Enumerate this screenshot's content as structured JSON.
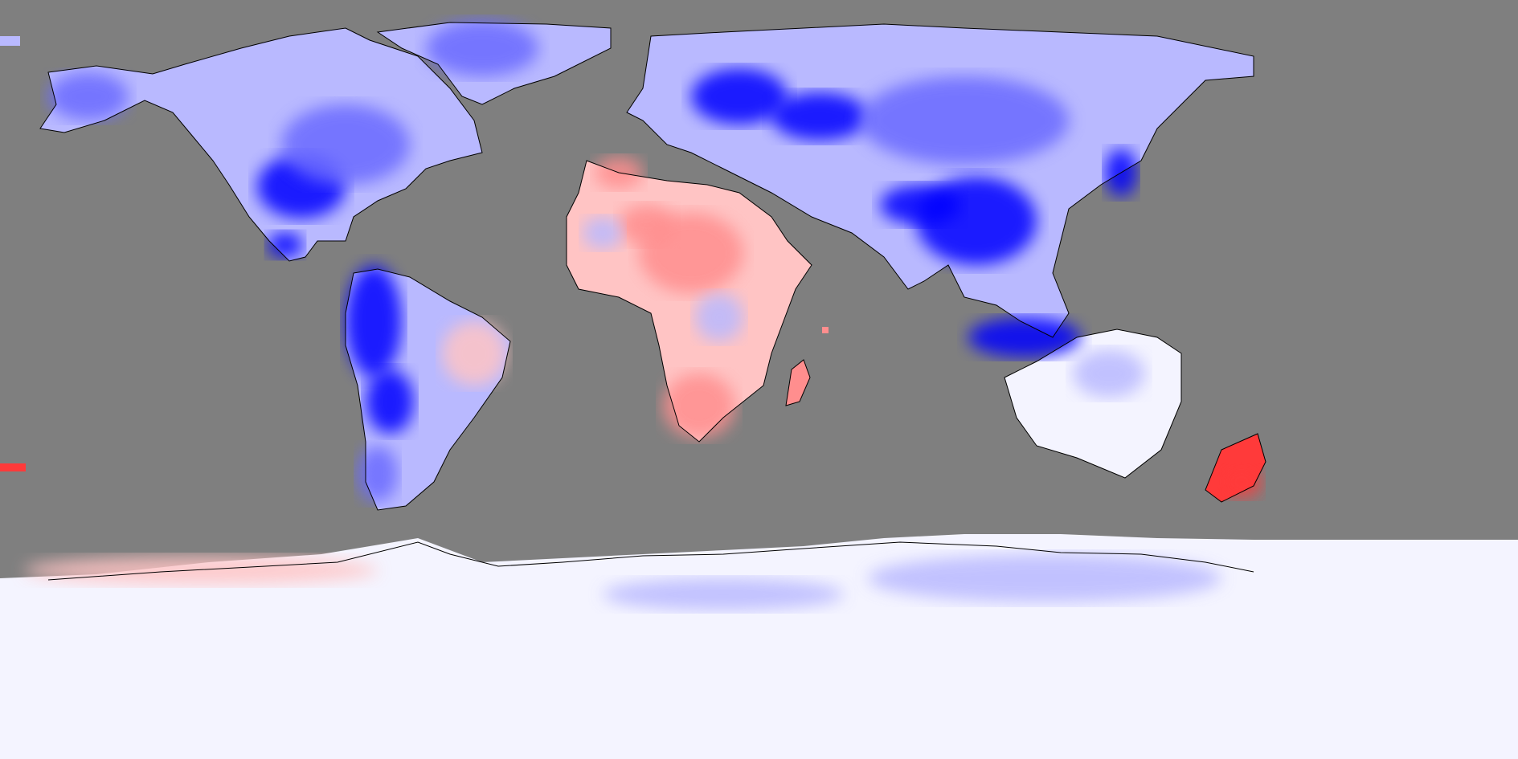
{
  "map": {
    "projection": "equirectangular",
    "ocean_color": "#7f7f7f",
    "coastline_color": "#000000",
    "palette": {
      "strong_cold": "#0000ff",
      "moderate_cold": "#6a6aff",
      "weak_cold": "#b9b9ff",
      "neutral": "#f4f4ff",
      "weak_warm": "#ffc4c4",
      "moderate_warm": "#ff8e8e",
      "strong_warm": "#ff3a3a"
    },
    "regions": [
      {
        "name": "north-america",
        "tone": "weak_cold"
      },
      {
        "name": "greenland",
        "tone": "weak_cold"
      },
      {
        "name": "south-america",
        "tone": "weak_cold"
      },
      {
        "name": "eurasia",
        "tone": "weak_cold"
      },
      {
        "name": "africa",
        "tone": "weak_warm"
      },
      {
        "name": "madagascar",
        "tone": "moderate_warm"
      },
      {
        "name": "australia",
        "tone": "neutral"
      },
      {
        "name": "new-zealand",
        "tone": "strong_warm"
      },
      {
        "name": "antarctica",
        "tone": "neutral"
      }
    ]
  }
}
